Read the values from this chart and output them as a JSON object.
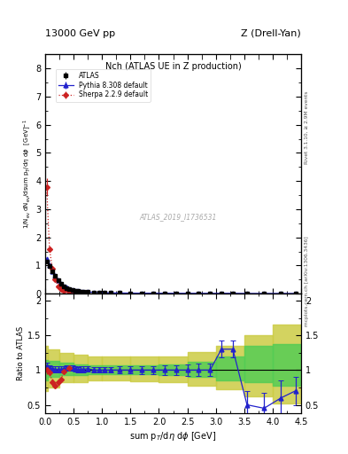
{
  "title_top": "13000 GeV pp",
  "title_right": "Z (Drell-Yan)",
  "plot_title": "Nch (ATLAS UE in Z production)",
  "watermark": "ATLAS_2019_I1736531",
  "xlabel": "sum p$_T$/d$\\eta$ d$\\phi$ [GeV]",
  "ylabel_main": "1/N$_{ev}$ dN$_{ev}$/dsum p$_T$/d$\\eta$ d$\\phi$  [GeV]$^{-1}$",
  "ylabel_ratio": "Ratio to ATLAS",
  "right_label1": "Rivet 3.1.10, ≥ 2.9M events",
  "right_label2": "mcplots.cern.ch [arXiv:1306.3436]",
  "atlas_x": [
    0.025,
    0.075,
    0.125,
    0.175,
    0.225,
    0.275,
    0.325,
    0.375,
    0.425,
    0.475,
    0.525,
    0.575,
    0.625,
    0.675,
    0.75,
    0.85,
    0.95,
    1.05,
    1.15,
    1.3,
    1.5,
    1.7,
    1.9,
    2.1,
    2.3,
    2.5,
    2.7,
    2.9,
    3.1,
    3.3,
    3.55,
    3.85,
    4.15,
    4.4
  ],
  "atlas_y": [
    1.15,
    0.97,
    0.78,
    0.62,
    0.47,
    0.35,
    0.26,
    0.2,
    0.16,
    0.13,
    0.108,
    0.092,
    0.079,
    0.068,
    0.056,
    0.044,
    0.036,
    0.029,
    0.025,
    0.02,
    0.016,
    0.013,
    0.011,
    0.009,
    0.008,
    0.007,
    0.006,
    0.006,
    0.005,
    0.005,
    0.004,
    0.004,
    0.003,
    0.003
  ],
  "atlas_yerr": [
    0.05,
    0.04,
    0.03,
    0.025,
    0.02,
    0.015,
    0.012,
    0.009,
    0.007,
    0.006,
    0.005,
    0.004,
    0.004,
    0.003,
    0.003,
    0.002,
    0.002,
    0.002,
    0.001,
    0.001,
    0.001,
    0.001,
    0.001,
    0.001,
    0.001,
    0.001,
    0.001,
    0.001,
    0.001,
    0.001,
    0.001,
    0.001,
    0.001,
    0.001
  ],
  "pythia_x": [
    0.025,
    0.075,
    0.125,
    0.175,
    0.225,
    0.275,
    0.325,
    0.375,
    0.425,
    0.475,
    0.525,
    0.575,
    0.625,
    0.675,
    0.75,
    0.85,
    0.95,
    1.05,
    1.15,
    1.3,
    1.5,
    1.7,
    1.9,
    2.1,
    2.3,
    2.5,
    2.7,
    2.9,
    3.1,
    3.3,
    3.55,
    3.85,
    4.15,
    4.4
  ],
  "pythia_y": [
    1.22,
    1.0,
    0.8,
    0.63,
    0.48,
    0.36,
    0.27,
    0.21,
    0.165,
    0.135,
    0.11,
    0.092,
    0.08,
    0.069,
    0.057,
    0.044,
    0.036,
    0.029,
    0.025,
    0.02,
    0.016,
    0.013,
    0.011,
    0.009,
    0.008,
    0.007,
    0.006,
    0.006,
    0.006,
    0.0065,
    0.002,
    0.002,
    0.002,
    0.002
  ],
  "pythia_yerr": [
    0.03,
    0.025,
    0.02,
    0.015,
    0.012,
    0.009,
    0.007,
    0.006,
    0.005,
    0.004,
    0.003,
    0.003,
    0.003,
    0.002,
    0.002,
    0.002,
    0.001,
    0.001,
    0.001,
    0.001,
    0.001,
    0.001,
    0.001,
    0.001,
    0.001,
    0.001,
    0.001,
    0.001,
    0.001,
    0.001,
    0.001,
    0.001,
    0.001,
    0.001
  ],
  "sherpa_x": [
    0.025,
    0.075,
    0.125,
    0.175,
    0.225,
    0.275,
    0.325,
    0.425,
    0.525,
    0.675
  ],
  "sherpa_y": [
    3.8,
    1.58,
    0.9,
    0.5,
    0.27,
    0.17,
    0.11,
    0.07,
    0.05,
    0.035
  ],
  "sherpa_yerr": [
    0.3,
    0.1,
    0.06,
    0.03,
    0.018,
    0.012,
    0.008,
    0.005,
    0.004,
    0.003
  ],
  "ratio_pythia_x": [
    0.025,
    0.075,
    0.125,
    0.175,
    0.225,
    0.275,
    0.325,
    0.375,
    0.425,
    0.475,
    0.525,
    0.575,
    0.625,
    0.675,
    0.75,
    0.85,
    0.95,
    1.05,
    1.15,
    1.3,
    1.5,
    1.7,
    1.9,
    2.1,
    2.3,
    2.5,
    2.7,
    2.9,
    3.1,
    3.3,
    3.55,
    3.85,
    4.15,
    4.4
  ],
  "ratio_pythia_y": [
    1.06,
    1.03,
    1.02,
    1.01,
    1.01,
    1.01,
    1.02,
    1.03,
    1.03,
    1.03,
    1.02,
    1.0,
    1.01,
    1.01,
    1.02,
    1.0,
    1.0,
    1.0,
    1.0,
    1.0,
    1.0,
    1.0,
    1.0,
    1.0,
    1.0,
    1.0,
    1.0,
    1.0,
    1.3,
    1.3,
    0.5,
    0.45,
    0.6,
    0.7
  ],
  "ratio_pythia_yerr": [
    0.05,
    0.04,
    0.04,
    0.04,
    0.04,
    0.04,
    0.04,
    0.04,
    0.04,
    0.04,
    0.04,
    0.04,
    0.04,
    0.04,
    0.04,
    0.04,
    0.04,
    0.04,
    0.04,
    0.05,
    0.05,
    0.06,
    0.06,
    0.07,
    0.07,
    0.08,
    0.09,
    0.09,
    0.12,
    0.12,
    0.2,
    0.22,
    0.25,
    0.2
  ],
  "ratio_sherpa_x": [
    0.025,
    0.075,
    0.125,
    0.175,
    0.225,
    0.275,
    0.325,
    0.425
  ],
  "ratio_sherpa_y": [
    1.0,
    0.97,
    0.83,
    0.78,
    0.82,
    0.86,
    0.98,
    1.03
  ],
  "ratio_sherpa_yerr": [
    0.06,
    0.05,
    0.05,
    0.04,
    0.04,
    0.04,
    0.04,
    0.04
  ],
  "green_band_xlo": [
    0.0,
    0.05,
    0.25,
    0.5,
    0.75,
    1.0,
    1.5,
    2.0,
    2.5,
    3.0,
    3.5,
    4.0,
    4.5
  ],
  "green_band_xhi": [
    0.05,
    0.25,
    0.5,
    0.75,
    1.0,
    1.5,
    2.0,
    2.5,
    3.0,
    3.5,
    4.0,
    4.5,
    4.5
  ],
  "green_band_lo": [
    0.85,
    0.9,
    0.93,
    0.93,
    0.94,
    0.94,
    0.94,
    0.93,
    0.9,
    0.85,
    0.82,
    0.78,
    0.78
  ],
  "green_band_hi": [
    1.15,
    1.13,
    1.1,
    1.08,
    1.07,
    1.07,
    1.07,
    1.08,
    1.12,
    1.2,
    1.35,
    1.38,
    1.38
  ],
  "yellow_band_xlo": [
    0.0,
    0.05,
    0.25,
    0.5,
    0.75,
    1.0,
    1.5,
    2.0,
    2.5,
    3.0,
    3.5,
    4.0,
    4.5
  ],
  "yellow_band_xhi": [
    0.05,
    0.25,
    0.5,
    0.75,
    1.0,
    1.5,
    2.0,
    2.5,
    3.0,
    3.5,
    4.0,
    4.5,
    4.5
  ],
  "yellow_band_lo": [
    0.7,
    0.75,
    0.82,
    0.83,
    0.85,
    0.85,
    0.84,
    0.82,
    0.78,
    0.72,
    0.62,
    0.52,
    0.52
  ],
  "yellow_band_hi": [
    1.35,
    1.3,
    1.25,
    1.22,
    1.2,
    1.19,
    1.19,
    1.2,
    1.26,
    1.35,
    1.5,
    1.65,
    1.65
  ],
  "main_ylim": [
    0.0,
    8.5
  ],
  "main_yticks": [
    0,
    1,
    2,
    3,
    4,
    5,
    6,
    7,
    8
  ],
  "ratio_ylim": [
    0.38,
    2.1
  ],
  "ratio_yticks": [
    0.5,
    1.0,
    1.5,
    2.0
  ],
  "xlim": [
    0.0,
    4.5
  ],
  "color_atlas": "#000000",
  "color_pythia": "#2222cc",
  "color_sherpa": "#cc2222",
  "color_green": "#55cc55",
  "color_yellow": "#cccc44",
  "color_bg": "#ffffff"
}
